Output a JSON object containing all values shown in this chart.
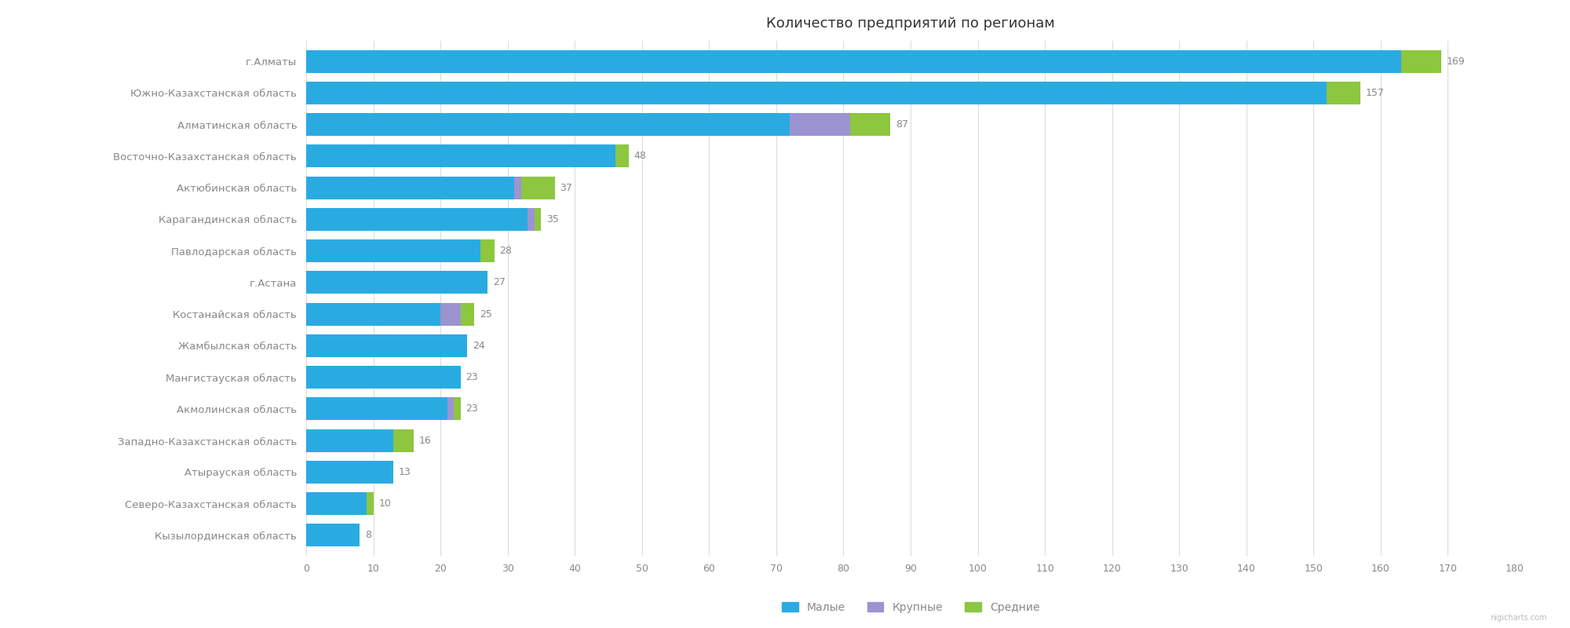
{
  "title": "Количество предприятий по регионам",
  "regions": [
    "г.Алматы",
    "Южно-Казахстанская область",
    "Алматинская область",
    "Восточно-Казахстанская область",
    "Актюбинская область",
    "Карагандинская область",
    "Павлодарская область",
    "г.Астана",
    "Костанайская область",
    "Жамбылская область",
    "Мангистауская область",
    "Акмолинская область",
    "Западно-Казахстанская область",
    "Атырауская область",
    "Северо-Казахстанская область",
    "Кызылординская область"
  ],
  "totals": [
    169,
    157,
    87,
    48,
    37,
    35,
    28,
    27,
    25,
    24,
    23,
    23,
    16,
    13,
    10,
    8
  ],
  "малые": [
    163,
    152,
    72,
    46,
    31,
    33,
    26,
    27,
    20,
    24,
    23,
    21,
    13,
    13,
    9,
    8
  ],
  "крупные": [
    0,
    0,
    9,
    0,
    1,
    1,
    0,
    0,
    3,
    0,
    0,
    1,
    0,
    0,
    0,
    0
  ],
  "средние": [
    6,
    5,
    6,
    2,
    5,
    1,
    2,
    0,
    2,
    0,
    0,
    1,
    3,
    0,
    1,
    0
  ],
  "color_малые": "#29ABE2",
  "color_крупные": "#9B94D1",
  "color_средние": "#8DC63F",
  "color_bg": "#FFFFFF",
  "color_grid": "#DDDDDD",
  "color_text": "#888888",
  "color_title": "#333333",
  "xlim": [
    0,
    180
  ],
  "xticks": [
    0,
    10,
    20,
    30,
    40,
    50,
    60,
    70,
    80,
    90,
    100,
    110,
    120,
    130,
    140,
    150,
    160,
    170,
    180
  ],
  "legend_labels": [
    "Малые",
    "Крупные",
    "Средние"
  ],
  "watermark": "nigicharts.com",
  "bar_height": 0.72
}
